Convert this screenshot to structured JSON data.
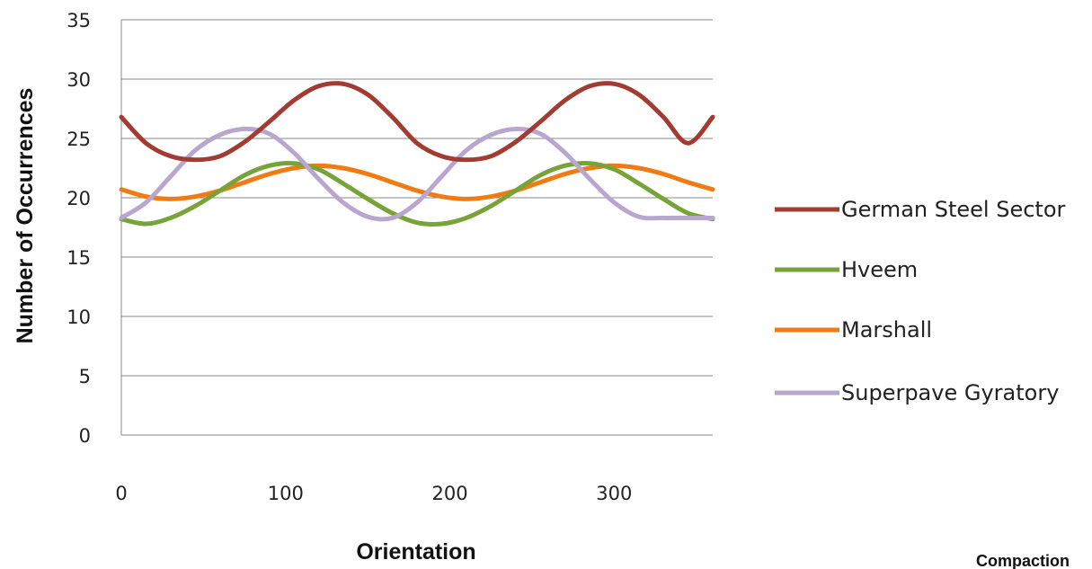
{
  "chart_data": {
    "type": "line",
    "xlabel": "Orientation",
    "ylabel": "Number of Occurrences",
    "xlim": [
      0,
      360
    ],
    "ylim": [
      0,
      35
    ],
    "x_ticks": [
      0,
      100,
      200,
      300
    ],
    "y_ticks": [
      0,
      5,
      10,
      15,
      20,
      25,
      30,
      35
    ],
    "grid": "horizontal",
    "legend_position": "right",
    "x": [
      0,
      15,
      30,
      45,
      60,
      75,
      90,
      105,
      120,
      135,
      150,
      165,
      180,
      195,
      210,
      225,
      240,
      255,
      270,
      285,
      300,
      315,
      330,
      345,
      360
    ],
    "series": [
      {
        "name": "German Steel Sector",
        "color": "#a23b32",
        "values": [
          26.8,
          24.6,
          23.5,
          23.2,
          23.5,
          24.7,
          26.4,
          28.2,
          29.4,
          29.6,
          28.7,
          26.8,
          24.6,
          23.5,
          23.2,
          23.5,
          24.7,
          26.4,
          28.2,
          29.4,
          29.6,
          28.7,
          26.8,
          24.6,
          26.8
        ]
      },
      {
        "name": "Hveem",
        "color": "#77a338",
        "values": [
          18.2,
          17.8,
          18.3,
          19.3,
          20.6,
          21.9,
          22.7,
          22.9,
          22.4,
          21.2,
          19.9,
          18.7,
          17.9,
          17.8,
          18.3,
          19.3,
          20.6,
          21.9,
          22.7,
          22.9,
          22.4,
          21.2,
          19.9,
          18.7,
          18.2
        ]
      },
      {
        "name": "Marshall",
        "color": "#f07b14",
        "values": [
          20.7,
          20.1,
          19.9,
          20.1,
          20.6,
          21.3,
          22.0,
          22.5,
          22.7,
          22.5,
          22.0,
          21.3,
          20.6,
          20.1,
          19.9,
          20.1,
          20.6,
          21.3,
          22.0,
          22.5,
          22.7,
          22.5,
          22.0,
          21.3,
          20.7
        ]
      },
      {
        "name": "Superpave Gyratory",
        "color": "#b9a6cf",
        "values": [
          18.3,
          19.6,
          21.8,
          24.0,
          25.3,
          25.8,
          25.4,
          23.8,
          21.6,
          19.6,
          18.4,
          18.3,
          19.6,
          21.8,
          24.0,
          25.3,
          25.8,
          25.4,
          23.8,
          21.6,
          19.6,
          18.4,
          18.3,
          18.3,
          18.3
        ]
      }
    ],
    "cut_off_text": "Compaction"
  }
}
